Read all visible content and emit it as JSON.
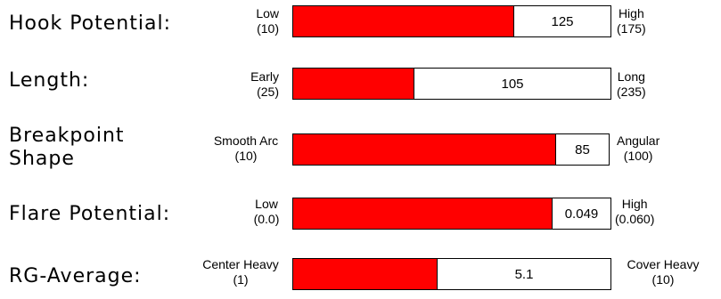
{
  "rows": [
    {
      "label": "Hook Potential:",
      "low": "Low\n(10)",
      "high": "High\n(175)",
      "value": "125",
      "min": 10,
      "max": 175,
      "level": 125
    },
    {
      "label": "Length:",
      "low": "Early\n(25)",
      "high": "Long\n(235)",
      "value": "105",
      "min": 25,
      "max": 235,
      "level": 105
    },
    {
      "label": "Breakpoint\nShape",
      "low": "Smooth Arc\n(10)",
      "high": "Angular\n(100)",
      "value": "85",
      "min": 10,
      "max": 100,
      "level": 85
    },
    {
      "label": "Flare Potential:",
      "low": "Low\n(0.0)",
      "high": "High\n(0.060)",
      "value": "0.049",
      "min": 0.0,
      "max": 0.06,
      "level": 0.049
    },
    {
      "label": "RG-Average:",
      "low": "Center Heavy\n(1)",
      "high": "Cover Heavy\n(10)",
      "value": "5.1",
      "min": 1,
      "max": 10,
      "level": 5.1
    }
  ],
  "colors": {
    "fill": "#ff0000",
    "empty": "#ffffff"
  }
}
